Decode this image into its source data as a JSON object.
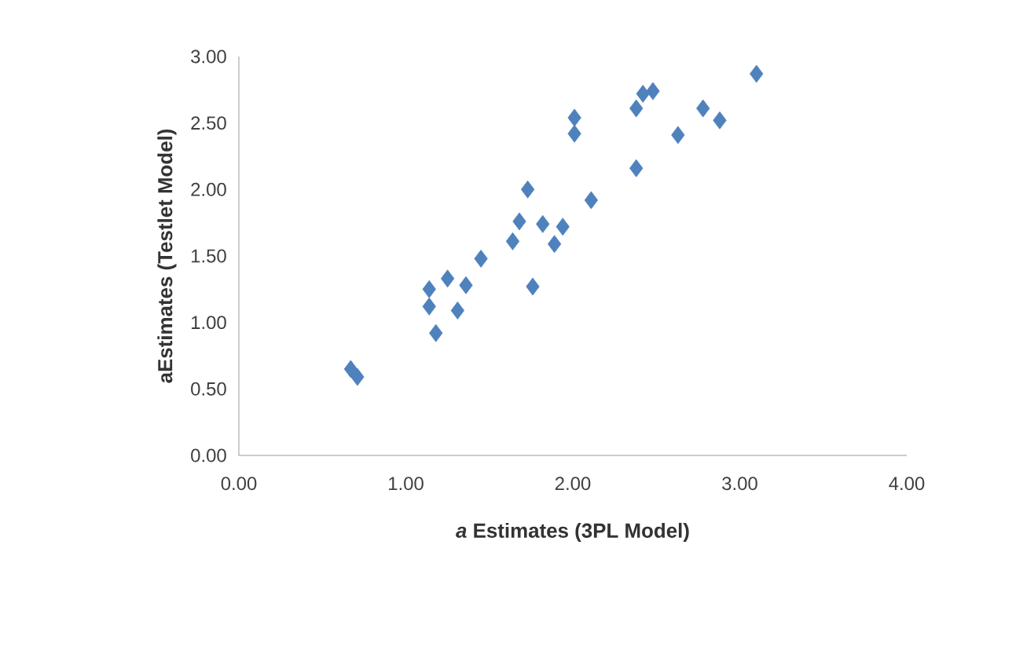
{
  "chart_data": {
    "type": "scatter",
    "xlabel": "*a* Estimates (3PL Model)",
    "ylabel": "aEstimates (Testlet Model)",
    "marker": "diamond",
    "color": "#4f81bd",
    "x": [
      0.67,
      0.71,
      1.18,
      1.14,
      1.14,
      1.25,
      1.36,
      1.31,
      1.45,
      1.64,
      1.68,
      1.73,
      1.76,
      1.82,
      1.89,
      1.94,
      2.01,
      2.01,
      2.11,
      2.38,
      2.38,
      2.42,
      2.48,
      2.63,
      2.78,
      2.88,
      3.1
    ],
    "values": [
      0.65,
      0.59,
      0.92,
      1.12,
      1.25,
      1.33,
      1.28,
      1.09,
      1.48,
      1.61,
      1.76,
      2.0,
      1.27,
      1.74,
      1.59,
      1.72,
      2.54,
      2.42,
      1.92,
      2.16,
      2.61,
      2.72,
      2.74,
      2.41,
      2.61,
      2.52,
      2.87
    ],
    "xlim": [
      0,
      4
    ],
    "ylim": [
      0,
      3
    ],
    "xticks": [
      {
        "value": 0,
        "label": "0.00"
      },
      {
        "value": 1,
        "label": "1.00"
      },
      {
        "value": 2,
        "label": "2.00"
      },
      {
        "value": 3,
        "label": "3.00"
      },
      {
        "value": 4,
        "label": "4.00"
      }
    ],
    "yticks": [
      {
        "value": 0,
        "label": "0.00"
      },
      {
        "value": 0.5,
        "label": "0.50"
      },
      {
        "value": 1,
        "label": "1.00"
      },
      {
        "value": 1.5,
        "label": "1.50"
      },
      {
        "value": 2,
        "label": "2.00"
      },
      {
        "value": 2.5,
        "label": "2.50"
      },
      {
        "value": 3,
        "label": "3.00"
      }
    ]
  }
}
